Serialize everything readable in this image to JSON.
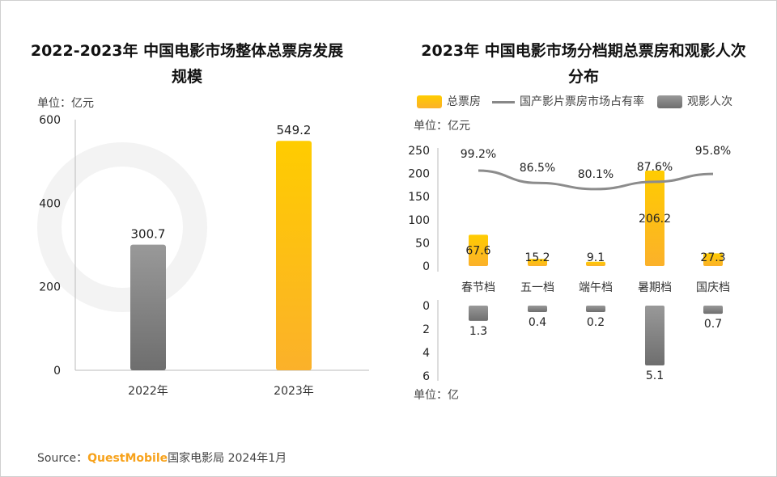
{
  "source": {
    "label": "Source：",
    "brand": "QuestMobile",
    "text": "国家电影局 2024年1月"
  },
  "watermark": "QUESTMOBILE",
  "colors": {
    "gold_top": "#ffcc00",
    "gold_bottom": "#fbb12a",
    "gray_top": "#999999",
    "gray_bottom": "#6e6e6e",
    "line": "#8c8c8c"
  },
  "chart_data": [
    {
      "type": "bar",
      "title": "2022-2023年 中国电影市场整体总票房发展规模",
      "unit_label": "单位：亿元",
      "categories": [
        "2022年",
        "2023年"
      ],
      "values": [
        300.7,
        549.2
      ],
      "yticks": [
        0,
        200,
        400,
        600
      ],
      "ylim": [
        0,
        600
      ],
      "grid": false
    },
    {
      "type": "bar+line",
      "title": "2023年 中国电影市场分档期总票房和观影人次分布",
      "legend": [
        "总票房",
        "国产影片票房市场占有率",
        "观影人次"
      ],
      "legend_position": "top",
      "categories": [
        "春节档",
        "五一档",
        "端午档",
        "暑期档",
        "国庆档"
      ],
      "box_office": {
        "name": "总票房",
        "unit_label": "单位：亿元",
        "values": [
          67.6,
          15.2,
          9.1,
          206.2,
          27.3
        ],
        "yticks": [
          0,
          50,
          100,
          150,
          200,
          250
        ],
        "ylim": [
          0,
          250
        ]
      },
      "domestic_share": {
        "name": "国产影片票房市场占有率",
        "values": [
          99.2,
          86.5,
          80.1,
          87.6,
          95.8
        ],
        "labels": [
          "99.2%",
          "86.5%",
          "80.1%",
          "87.6%",
          "95.8%"
        ]
      },
      "admissions": {
        "name": "观影人次",
        "unit_label": "单位：亿",
        "values": [
          1.3,
          0.4,
          0.2,
          5.1,
          0.7
        ],
        "yticks": [
          0,
          2,
          4,
          6
        ],
        "ylim": [
          0,
          6
        ],
        "inverted": true
      },
      "grid": false
    }
  ]
}
